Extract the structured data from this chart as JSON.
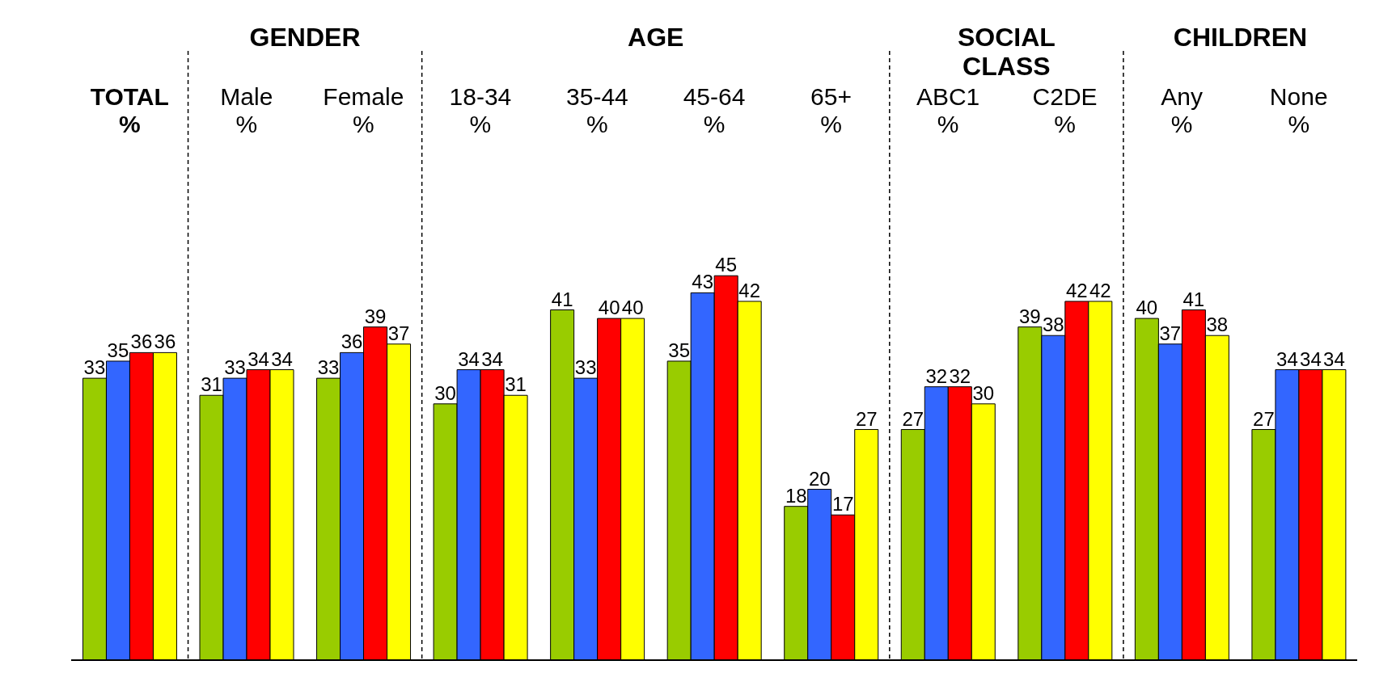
{
  "chart_data": {
    "type": "bar",
    "categories": [
      "TOTAL\n%",
      "Male\n%",
      "Female\n%",
      "18-34\n%",
      "35-44\n%",
      "45-64\n%",
      "65+\n%",
      "ABC1\n%",
      "C2DE\n%",
      "Any\n%",
      "None\n%"
    ],
    "series": [
      {
        "color": "#99cc00",
        "values": [
          33,
          31,
          33,
          30,
          41,
          35,
          18,
          27,
          39,
          40,
          27
        ]
      },
      {
        "color": "#3366ff",
        "values": [
          35,
          33,
          36,
          34,
          33,
          43,
          20,
          32,
          38,
          37,
          34
        ]
      },
      {
        "color": "#ff0000",
        "values": [
          36,
          34,
          39,
          34,
          40,
          45,
          17,
          32,
          42,
          41,
          34
        ]
      },
      {
        "color": "#ffff00",
        "values": [
          36,
          34,
          37,
          31,
          40,
          42,
          27,
          30,
          42,
          38,
          34
        ]
      }
    ],
    "data_labels": true,
    "annotations": [
      "GENDER",
      "AGE",
      "SOCIAL CLASS",
      "CHILDREN"
    ]
  }
}
